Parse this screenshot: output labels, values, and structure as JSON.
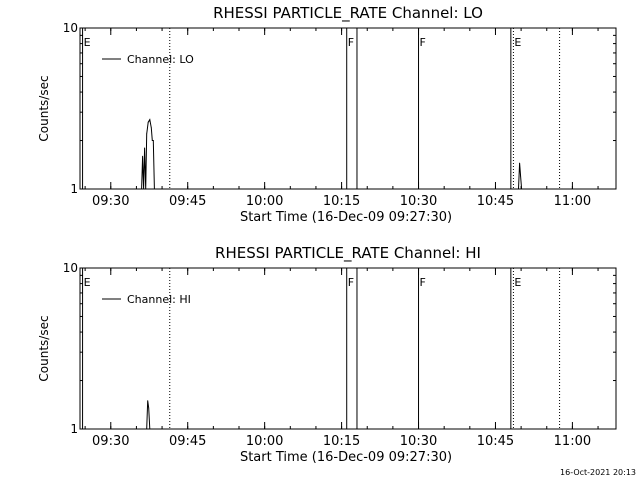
{
  "footer_timestamp": "16-Oct-2021 20:13",
  "chart_data": [
    {
      "type": "line",
      "title": "RHESSI PARTICLE_RATE Channel: LO",
      "xlabel": "Start Time (16-Dec-09 09:27:30)",
      "ylabel": "Counts/sec",
      "yscale": "log",
      "ylim": [
        1,
        10
      ],
      "xlim_minutes": [
        -3.5,
        101
      ],
      "yticks": [
        {
          "v": 1,
          "label": "1"
        },
        {
          "v": 10,
          "label": "10"
        }
      ],
      "xticks": [
        {
          "t": 2.5,
          "label": "09:30"
        },
        {
          "t": 17.5,
          "label": "09:45"
        },
        {
          "t": 32.5,
          "label": "10:00"
        },
        {
          "t": 47.5,
          "label": "10:15"
        },
        {
          "t": 62.5,
          "label": "10:30"
        },
        {
          "t": 77.5,
          "label": "10:45"
        },
        {
          "t": 92.5,
          "label": "11:00"
        }
      ],
      "legend": {
        "label": "Channel: LO",
        "placement": "top-left"
      },
      "flags": [
        {
          "t": -3.0,
          "label": "E",
          "style": "solid"
        },
        {
          "t": 14.0,
          "label": "",
          "style": "dotted"
        },
        {
          "t": 48.5,
          "label": "F",
          "style": "solid"
        },
        {
          "t": 50.5,
          "label": "",
          "style": "solid"
        },
        {
          "t": 62.5,
          "label": "F",
          "style": "solid"
        },
        {
          "t": 80.5,
          "label": "",
          "style": "solid"
        },
        {
          "t": 81.0,
          "label": "E",
          "style": "dotted"
        },
        {
          "t": 90.0,
          "label": "",
          "style": "dotted"
        }
      ],
      "series": [
        {
          "points": [
            [
              8.5,
              1.0
            ],
            [
              8.7,
              1.6
            ],
            [
              8.9,
              1.0
            ],
            [
              9.1,
              1.8
            ],
            [
              9.3,
              1.0
            ],
            [
              9.5,
              2.2
            ],
            [
              9.8,
              2.6
            ],
            [
              10.1,
              2.7
            ],
            [
              10.4,
              2.4
            ],
            [
              10.6,
              2.0
            ],
            [
              10.8,
              2.0
            ],
            [
              11.0,
              1.0
            ],
            [
              82.0,
              1.0
            ],
            [
              82.2,
              1.45
            ],
            [
              82.4,
              1.2
            ],
            [
              82.6,
              1.0
            ]
          ]
        }
      ]
    },
    {
      "type": "line",
      "title": "RHESSI PARTICLE_RATE Channel: HI",
      "xlabel": "Start Time (16-Dec-09 09:27:30)",
      "ylabel": "Counts/sec",
      "yscale": "log",
      "ylim": [
        1,
        10
      ],
      "xlim_minutes": [
        -3.5,
        101
      ],
      "yticks": [
        {
          "v": 1,
          "label": "1"
        },
        {
          "v": 10,
          "label": "10"
        }
      ],
      "xticks": [
        {
          "t": 2.5,
          "label": "09:30"
        },
        {
          "t": 17.5,
          "label": "09:45"
        },
        {
          "t": 32.5,
          "label": "10:00"
        },
        {
          "t": 47.5,
          "label": "10:15"
        },
        {
          "t": 62.5,
          "label": "10:30"
        },
        {
          "t": 77.5,
          "label": "10:45"
        },
        {
          "t": 92.5,
          "label": "11:00"
        }
      ],
      "legend": {
        "label": "Channel: HI",
        "placement": "top-left"
      },
      "flags": [
        {
          "t": -3.0,
          "label": "E",
          "style": "solid"
        },
        {
          "t": 14.0,
          "label": "",
          "style": "dotted"
        },
        {
          "t": 48.5,
          "label": "F",
          "style": "solid"
        },
        {
          "t": 50.5,
          "label": "",
          "style": "solid"
        },
        {
          "t": 62.5,
          "label": "F",
          "style": "solid"
        },
        {
          "t": 80.5,
          "label": "",
          "style": "solid"
        },
        {
          "t": 81.0,
          "label": "E",
          "style": "dotted"
        },
        {
          "t": 90.0,
          "label": "",
          "style": "dotted"
        }
      ],
      "series": [
        {
          "points": [
            [
              9.5,
              1.0
            ],
            [
              9.7,
              1.5
            ],
            [
              9.9,
              1.35
            ],
            [
              10.1,
              1.0
            ]
          ]
        }
      ]
    }
  ]
}
